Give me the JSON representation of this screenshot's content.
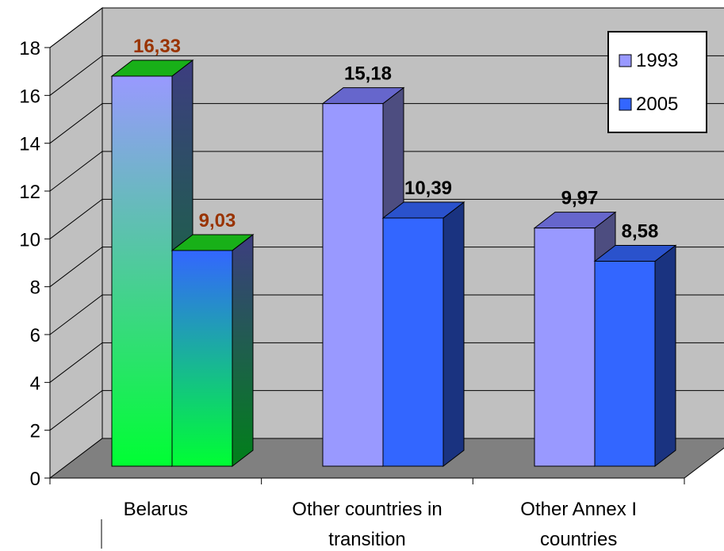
{
  "chart_data": {
    "type": "bar",
    "view": "3d-clustered-column",
    "categories": [
      "Belarus",
      "Other countries in transition",
      "Other Annex I countries"
    ],
    "series": [
      {
        "name": "1993",
        "values": [
          16.33,
          15.18,
          9.97
        ],
        "labels": [
          "16,33",
          "15,18",
          "9,97"
        ]
      },
      {
        "name": "2005",
        "values": [
          9.03,
          10.39,
          8.58
        ],
        "labels": [
          "9,03",
          "10,39",
          "8,58"
        ]
      }
    ],
    "category_lines": [
      [
        "Belarus"
      ],
      [
        "Other countries in",
        "transition"
      ],
      [
        "Other Annex I",
        "countries"
      ]
    ],
    "y_ticks": [
      "0",
      "2",
      "4",
      "6",
      "8",
      "10",
      "12",
      "14",
      "16",
      "18"
    ],
    "ylim": [
      0,
      18
    ],
    "grid": true,
    "legend_position": "top-right",
    "colors": {
      "series_1993": "#9999ff",
      "series_2005": "#3366ff",
      "wall": "#c0c0c0",
      "floor": "#808080",
      "highlight_label": "#993300",
      "highlight_gradient_top_1993": "#9999ff",
      "highlight_gradient_bottom": "#00ff33",
      "highlight_gradient_top_2005": "#3366ff"
    },
    "highlighted_category": "Belarus"
  }
}
